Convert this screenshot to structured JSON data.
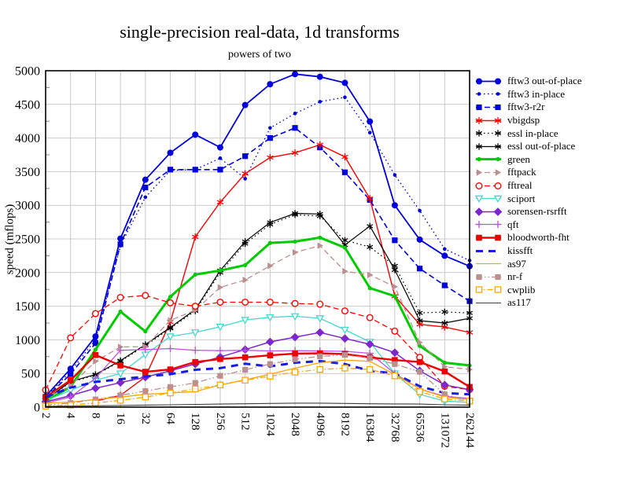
{
  "title": "single-precision real-data, 1d transforms",
  "subtitle": "powers of two",
  "ylabel": "speed (mflops)",
  "chart_data": {
    "type": "line",
    "x_categories": [
      "2",
      "4",
      "8",
      "16",
      "32",
      "64",
      "128",
      "256",
      "512",
      "1024",
      "2048",
      "4096",
      "8192",
      "16384",
      "32768",
      "65536",
      "131072",
      "262144"
    ],
    "xlabel": "",
    "ylabel": "speed (mflops)",
    "ylim": [
      0,
      5000
    ],
    "ytick_step": 500,
    "ytick_minor_step": 250,
    "grid": true,
    "legend_position": "right",
    "grid_color": "#c9c9c9",
    "frame_color": "#000000",
    "series": [
      {
        "name": "fftw3 out-of-place",
        "color": "#0000dd",
        "line": "solid",
        "width": 1.8,
        "marker": "circle",
        "marker_size": 4,
        "values": [
          160,
          570,
          1050,
          2505,
          3380,
          3780,
          4050,
          3860,
          4490,
          4800,
          4950,
          4910,
          4820,
          4245,
          3000,
          2490,
          2250,
          2095
        ]
      },
      {
        "name": "fftw3 in-place",
        "color": "#0000dd",
        "line": "dotted",
        "width": 1.3,
        "marker": "circle",
        "marker_size": 2.3,
        "values": [
          150,
          530,
          1000,
          2400,
          3120,
          3520,
          3530,
          3700,
          3395,
          4150,
          4365,
          4540,
          4605,
          4080,
          3450,
          2920,
          2350,
          2180
        ]
      },
      {
        "name": "fftw3-r2r",
        "color": "#0000dd",
        "line": "dashed",
        "width": 1.6,
        "marker": "square",
        "marker_size": 3.6,
        "values": [
          140,
          490,
          950,
          2420,
          3265,
          3530,
          3530,
          3530,
          3730,
          4000,
          4150,
          3860,
          3490,
          3080,
          2480,
          2060,
          1810,
          1575
        ]
      },
      {
        "name": "vbigdsp",
        "color": "#ff0000",
        "line": "solid",
        "width": 1.4,
        "marker": "asterisk",
        "marker_size": 4.5,
        "values": [
          null,
          null,
          90,
          175,
          450,
          1265,
          2530,
          3045,
          3470,
          3710,
          3780,
          3900,
          3720,
          3100,
          1650,
          1230,
          1190,
          1110
        ]
      },
      {
        "name": "essl in-place",
        "color": "#000000",
        "line": "dotted",
        "width": 1.2,
        "marker": "asterisk",
        "marker_size": 4.2,
        "values": [
          105,
          370,
          475,
          680,
          915,
          1170,
          1430,
          2000,
          2430,
          2715,
          2860,
          2840,
          2480,
          2380,
          2100,
          1400,
          1415,
          1400
        ]
      },
      {
        "name": "essl out-of-place",
        "color": "#000000",
        "line": "solid",
        "width": 1.2,
        "marker": "asterisk",
        "marker_size": 4.2,
        "values": [
          110,
          380,
          485,
          690,
          930,
          1185,
          1450,
          2030,
          2460,
          2745,
          2880,
          2870,
          2410,
          2690,
          2040,
          1285,
          1250,
          1320
        ]
      },
      {
        "name": "green",
        "color": "#00cc00",
        "line": "solid",
        "width": 3,
        "marker": "circle",
        "marker_size": 2.6,
        "values": [
          90,
          300,
          855,
          1420,
          1125,
          1640,
          1970,
          2030,
          2110,
          2440,
          2460,
          2520,
          2370,
          1770,
          1650,
          910,
          660,
          620
        ]
      },
      {
        "name": "fftpack",
        "color": "#bc8f8f",
        "line": "dashed",
        "width": 1.3,
        "marker": "tri-right",
        "marker_size": 4.2,
        "values": [
          130,
          320,
          680,
          895,
          900,
          1290,
          1440,
          1780,
          1890,
          2100,
          2300,
          2400,
          2020,
          1965,
          1790,
          960,
          600,
          560
        ]
      },
      {
        "name": "fftreal",
        "color": "#ff0000",
        "line": "dashed",
        "width": 1.3,
        "marker": "circle-open",
        "marker_size": 3.8,
        "values": [
          255,
          1030,
          1390,
          1630,
          1660,
          1550,
          1500,
          1560,
          1560,
          1560,
          1540,
          1530,
          1430,
          1330,
          1130,
          740,
          310,
          260
        ]
      },
      {
        "name": "sciport",
        "color": "#40d9d0",
        "line": "solid",
        "width": 1.3,
        "marker": "tri-down-open",
        "marker_size": 4.2,
        "values": [
          95,
          250,
          400,
          500,
          780,
          1050,
          1110,
          1195,
          1295,
          1335,
          1350,
          1320,
          1150,
          970,
          500,
          190,
          90,
          70
        ]
      },
      {
        "name": "sorensen-rsrfft",
        "color": "#7d26cd",
        "line": "solid",
        "width": 1.5,
        "marker": "diamond",
        "marker_size": 4.4,
        "values": [
          80,
          170,
          280,
          365,
          445,
          540,
          640,
          745,
          855,
          970,
          1040,
          1110,
          1020,
          935,
          810,
          540,
          330,
          260
        ]
      },
      {
        "name": "qft",
        "color": "#bb55dd",
        "line": "solid",
        "width": 1.3,
        "marker": "plus",
        "marker_size": 4.6,
        "values": [
          60,
          150,
          430,
          845,
          855,
          870,
          845,
          840,
          845,
          835,
          840,
          835,
          830,
          800,
          500,
          270,
          160,
          130
        ]
      },
      {
        "name": "bloodworth-fht",
        "color": "#ee0000",
        "line": "solid",
        "width": 2.4,
        "marker": "square",
        "marker_size": 3.8,
        "values": [
          150,
          400,
          775,
          620,
          525,
          560,
          670,
          715,
          740,
          770,
          795,
          800,
          790,
          740,
          700,
          670,
          530,
          300
        ]
      },
      {
        "name": "kissfft",
        "color": "#1a1ae6",
        "line": "longdash",
        "width": 3,
        "marker": "none",
        "marker_size": 0,
        "values": [
          150,
          290,
          375,
          415,
          455,
          490,
          555,
          580,
          645,
          605,
          660,
          685,
          640,
          540,
          500,
          310,
          210,
          190
        ]
      },
      {
        "name": "as97",
        "color": "#ffa500",
        "line": "solid",
        "width": 1.3,
        "marker": "none",
        "marker_size": 0,
        "values": [
          60,
          75,
          115,
          150,
          190,
          210,
          230,
          330,
          405,
          490,
          580,
          660,
          700,
          680,
          485,
          270,
          150,
          110
        ]
      },
      {
        "name": "nr-f",
        "color": "#bc8f8f",
        "line": "dashdotdot",
        "width": 1.3,
        "marker": "square",
        "marker_size": 3.6,
        "values": [
          30,
          60,
          115,
          175,
          240,
          300,
          360,
          465,
          555,
          640,
          710,
          755,
          775,
          730,
          640,
          525,
          190,
          95
        ]
      },
      {
        "name": "cwplib",
        "color": "#ffa500",
        "line": "dashdot",
        "width": 1.3,
        "marker": "square-open",
        "marker_size": 3.6,
        "values": [
          15,
          30,
          60,
          100,
          150,
          210,
          270,
          330,
          400,
          460,
          520,
          560,
          580,
          560,
          465,
          230,
          120,
          90
        ]
      },
      {
        "name": "as117",
        "color": "#404040",
        "line": "solid",
        "width": 1.1,
        "marker": "none",
        "marker_size": 0,
        "values": [
          10,
          15,
          20,
          25,
          30,
          35,
          40,
          45,
          50,
          55,
          60,
          60,
          55,
          50,
          48,
          45,
          35,
          30
        ]
      }
    ]
  }
}
